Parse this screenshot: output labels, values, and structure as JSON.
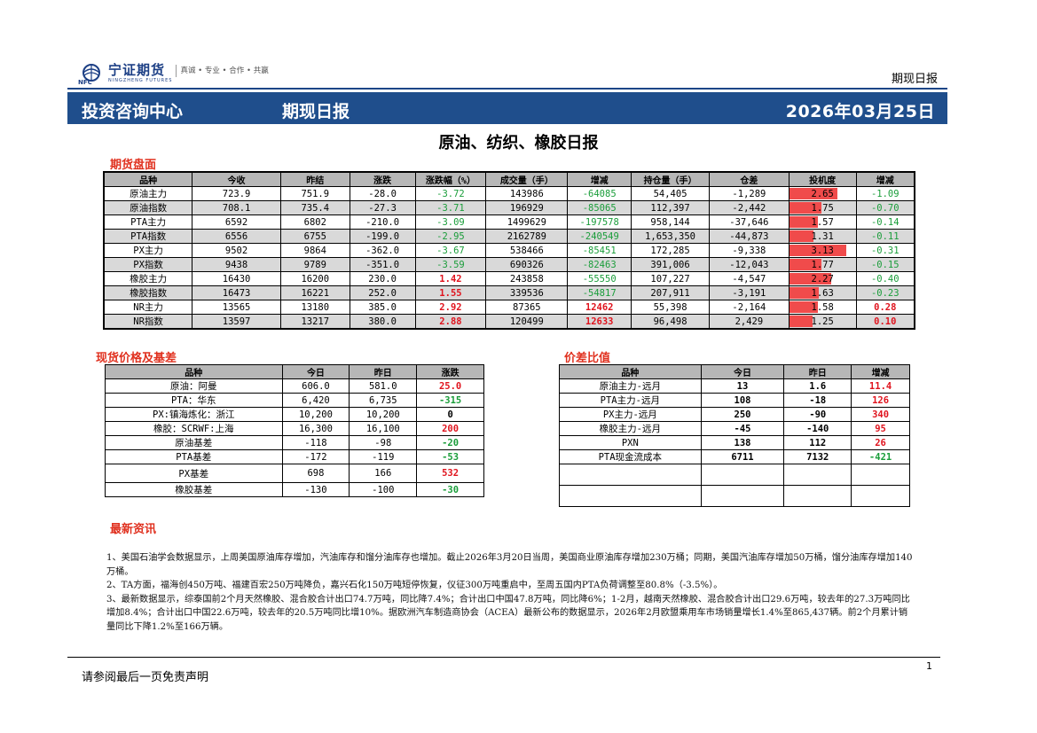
{
  "header": {
    "logo_cn": "宁证期货",
    "logo_en": "NINGZHENG FUTURES",
    "logo_abbr": "NFC",
    "slogan": "真诚 • 专业 • 合作 • 共赢",
    "doc_type": "期现日报"
  },
  "banner": {
    "center": "投资咨询中心",
    "title": "期现日报",
    "date": "2026年03月25日"
  },
  "main_title": "原油、纺织、橡胶日报",
  "futures": {
    "section_title": "期货盘面",
    "headers": [
      "品种",
      "今收",
      "昨结",
      "涨跌",
      "涨跌幅（%）",
      "成交量（手）",
      "增减",
      "持仓量（手）",
      "仓差",
      "投机度",
      "增减"
    ],
    "rows": [
      {
        "name": "原油主力",
        "close": "723.9",
        "prev": "751.9",
        "chg": "-28.0",
        "pct": "-3.72",
        "vol": "143986",
        "vol_chg": "-64085",
        "oi": "54,405",
        "oi_chg": "-1,289",
        "spec": "2.65",
        "spec_level": 0.85,
        "spec_chg": "-1.09"
      },
      {
        "name": "原油指数",
        "close": "708.1",
        "prev": "735.4",
        "chg": "-27.3",
        "pct": "-3.71",
        "vol": "196929",
        "vol_chg": "-85065",
        "oi": "112,397",
        "oi_chg": "-2,442",
        "spec": "1.75",
        "spec_level": 0.56,
        "spec_chg": "-0.70"
      },
      {
        "name": "PTA主力",
        "close": "6592",
        "prev": "6802",
        "chg": "-210.0",
        "pct": "-3.09",
        "vol": "1499629",
        "vol_chg": "-197578",
        "oi": "958,144",
        "oi_chg": "-37,646",
        "spec": "1.57",
        "spec_level": 0.5,
        "spec_chg": "-0.14"
      },
      {
        "name": "PTA指数",
        "close": "6556",
        "prev": "6755",
        "chg": "-199.0",
        "pct": "-2.95",
        "vol": "2162789",
        "vol_chg": "-240549",
        "oi": "1,653,350",
        "oi_chg": "-44,873",
        "spec": "1.31",
        "spec_level": 0.42,
        "spec_chg": "-0.11"
      },
      {
        "name": "PX主力",
        "close": "9502",
        "prev": "9864",
        "chg": "-362.0",
        "pct": "-3.67",
        "vol": "538466",
        "vol_chg": "-85451",
        "oi": "172,285",
        "oi_chg": "-9,338",
        "spec": "3.13",
        "spec_level": 1.0,
        "spec_chg": "-0.31"
      },
      {
        "name": "PX指数",
        "close": "9438",
        "prev": "9789",
        "chg": "-351.0",
        "pct": "-3.59",
        "vol": "690326",
        "vol_chg": "-82463",
        "oi": "391,006",
        "oi_chg": "-12,043",
        "spec": "1.77",
        "spec_level": 0.57,
        "spec_chg": "-0.15"
      },
      {
        "name": "橡胶主力",
        "close": "16430",
        "prev": "16200",
        "chg": "230.0",
        "pct": "1.42",
        "vol": "243858",
        "vol_chg": "-55550",
        "oi": "107,227",
        "oi_chg": "-4,547",
        "spec": "2.27",
        "spec_level": 0.73,
        "spec_chg": "-0.40"
      },
      {
        "name": "橡胶指数",
        "close": "16473",
        "prev": "16221",
        "chg": "252.0",
        "pct": "1.55",
        "vol": "339536",
        "vol_chg": "-54817",
        "oi": "207,911",
        "oi_chg": "-3,191",
        "spec": "1.63",
        "spec_level": 0.52,
        "spec_chg": "-0.23"
      },
      {
        "name": "NR主力",
        "close": "13565",
        "prev": "13180",
        "chg": "385.0",
        "pct": "2.92",
        "vol": "87365",
        "vol_chg": "12462",
        "oi": "55,398",
        "oi_chg": "-2,164",
        "spec": "1.58",
        "spec_level": 0.5,
        "spec_chg": "0.28"
      },
      {
        "name": "NR指数",
        "close": "13597",
        "prev": "13217",
        "chg": "380.0",
        "pct": "2.88",
        "vol": "120499",
        "vol_chg": "12633",
        "oi": "96,498",
        "oi_chg": "2,429",
        "spec": "1.25",
        "spec_level": 0.4,
        "spec_chg": "0.10"
      }
    ]
  },
  "spot": {
    "section_title": "现货价格及基差",
    "headers": [
      "品种",
      "今日",
      "昨日",
      "涨跌"
    ],
    "rows": [
      {
        "name": "原油：阿曼",
        "today": "606.0",
        "yest": "581.0",
        "chg": "25.0",
        "dir": "pos"
      },
      {
        "name": "PTA：华东",
        "today": "6,420",
        "yest": "6,735",
        "chg": "-315",
        "dir": "neg"
      },
      {
        "name": "PX:镇海炼化：浙江",
        "today": "10,200",
        "yest": "10,200",
        "chg": "0",
        "dir": "zero"
      },
      {
        "name": "橡胶：SCRWF:上海",
        "today": "16,300",
        "yest": "16,100",
        "chg": "200",
        "dir": "pos"
      },
      {
        "name": "原油基差",
        "today": "-118",
        "yest": "-98",
        "chg": "-20",
        "dir": "neg"
      },
      {
        "name": "PTA基差",
        "today": "-172",
        "yest": "-119",
        "chg": "-53",
        "dir": "neg"
      },
      {
        "name": "PX基差",
        "today": "698",
        "yest": "166",
        "chg": "532",
        "dir": "pos"
      },
      {
        "name": "橡胶基差",
        "today": "-130",
        "yest": "-100",
        "chg": "-30",
        "dir": "neg"
      }
    ]
  },
  "spread": {
    "section_title": "价差比值",
    "headers": [
      "品种",
      "今日",
      "昨日",
      "增减"
    ],
    "rows": [
      {
        "name": "原油主力-远月",
        "today": "13",
        "yest": "1.6",
        "chg": "11.4",
        "dir": "pos"
      },
      {
        "name": "PTA主力-远月",
        "today": "108",
        "yest": "-18",
        "chg": "126",
        "dir": "pos"
      },
      {
        "name": "PX主力-远月",
        "today": "250",
        "yest": "-90",
        "chg": "340",
        "dir": "pos"
      },
      {
        "name": "橡胶主力-远月",
        "today": "-45",
        "yest": "-140",
        "chg": "95",
        "dir": "pos"
      },
      {
        "name": "PXN",
        "today": "138",
        "yest": "112",
        "chg": "26",
        "dir": "pos"
      },
      {
        "name": "PTA现金流成本",
        "today": "6711",
        "yest": "7132",
        "chg": "-421",
        "dir": "neg"
      }
    ]
  },
  "news": {
    "section_title": "最新资讯",
    "items": [
      "1、美国石油学会数据显示，上周美国原油库存增加，汽油库存和馏分油库存也增加。截止2026年3月20日当周，美国商业原油库存增加230万桶；同期，美国汽油库存增加50万桶，馏分油库存增加140万桶。",
      "2、TA方面，福海创450万吨、福建百宏250万吨降负，嘉兴石化150万吨短停恢复，仪征300万吨重启中，至周五国内PTA负荷调整至80.8%（-3.5%）。",
      "3、最新数据显示，综泰国前2个月天然橡胶、混合胶合计出口74.7万吨，同比降7.4%；合计出口中国47.8万吨，同比降6%；1-2月，越南天然橡胶、混合胶合计出口29.6万吨，较去年的27.3万吨同比增加8.4%；合计出口中国22.6万吨，较去年的20.5万吨同比增10%。据欧洲汽车制造商协会（ACEA）最新公布的数据显示，2026年2月欧盟乘用车市场销量增长1.4%至865,437辆。前2个月累计销量同比下降1.2%至166万辆。"
    ]
  },
  "footer": {
    "page_number": "1",
    "disclaimer": "请参阅最后一页免责声明"
  }
}
